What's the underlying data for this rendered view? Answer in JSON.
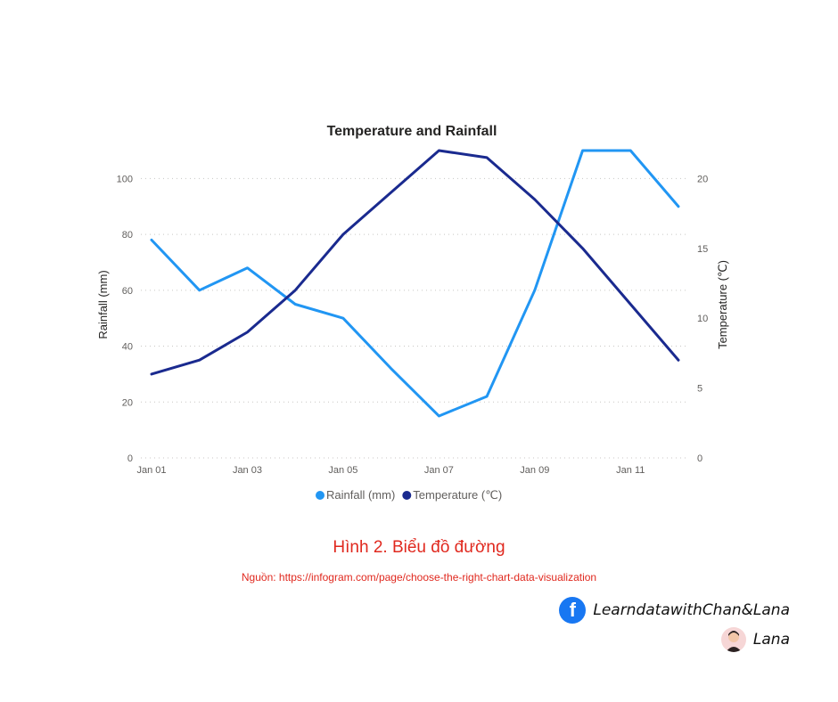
{
  "chart_data": {
    "type": "line",
    "title": "Temperature and Rainfall",
    "x": [
      "Jan 01",
      "Jan 02",
      "Jan 03",
      "Jan 04",
      "Jan 05",
      "Jan 06",
      "Jan 07",
      "Jan 08",
      "Jan 09",
      "Jan 10",
      "Jan 11",
      "Jan 12"
    ],
    "xticks": [
      "Jan 01",
      "Jan 03",
      "Jan 05",
      "Jan 07",
      "Jan 09",
      "Jan 11"
    ],
    "ylabel": "Rainfall (mm)",
    "ylim": [
      0,
      110
    ],
    "yticks": [
      "0",
      "20",
      "40",
      "60",
      "80",
      "100"
    ],
    "y2label": "Temperature (℃)",
    "y2lim": [
      0,
      22
    ],
    "y2ticks": [
      "0",
      "5",
      "10",
      "15",
      "20"
    ],
    "grid": true,
    "legend_position": "bottom",
    "series": [
      {
        "name": "Rainfall (mm)",
        "axis": "left",
        "color": "#2196f3",
        "values": [
          78,
          60,
          68,
          55,
          50,
          32,
          15,
          22,
          60,
          110,
          110,
          90
        ]
      },
      {
        "name": "Temperature (℃)",
        "axis": "right",
        "color": "#1a2a8f",
        "values": [
          6,
          7,
          9,
          12,
          16,
          19,
          22,
          21.5,
          18.5,
          15,
          11,
          7
        ]
      }
    ]
  },
  "caption": {
    "title": "Hình 2. Biểu đồ đường",
    "source": "Nguồn: https://infogram.com/page/choose-the-right-chart-data-visualization"
  },
  "credits": {
    "facebook_page": "LearndatawithChan&Lana",
    "author": "Lana",
    "facebook_icon": "facebook-icon",
    "author_icon": "avatar-icon"
  }
}
